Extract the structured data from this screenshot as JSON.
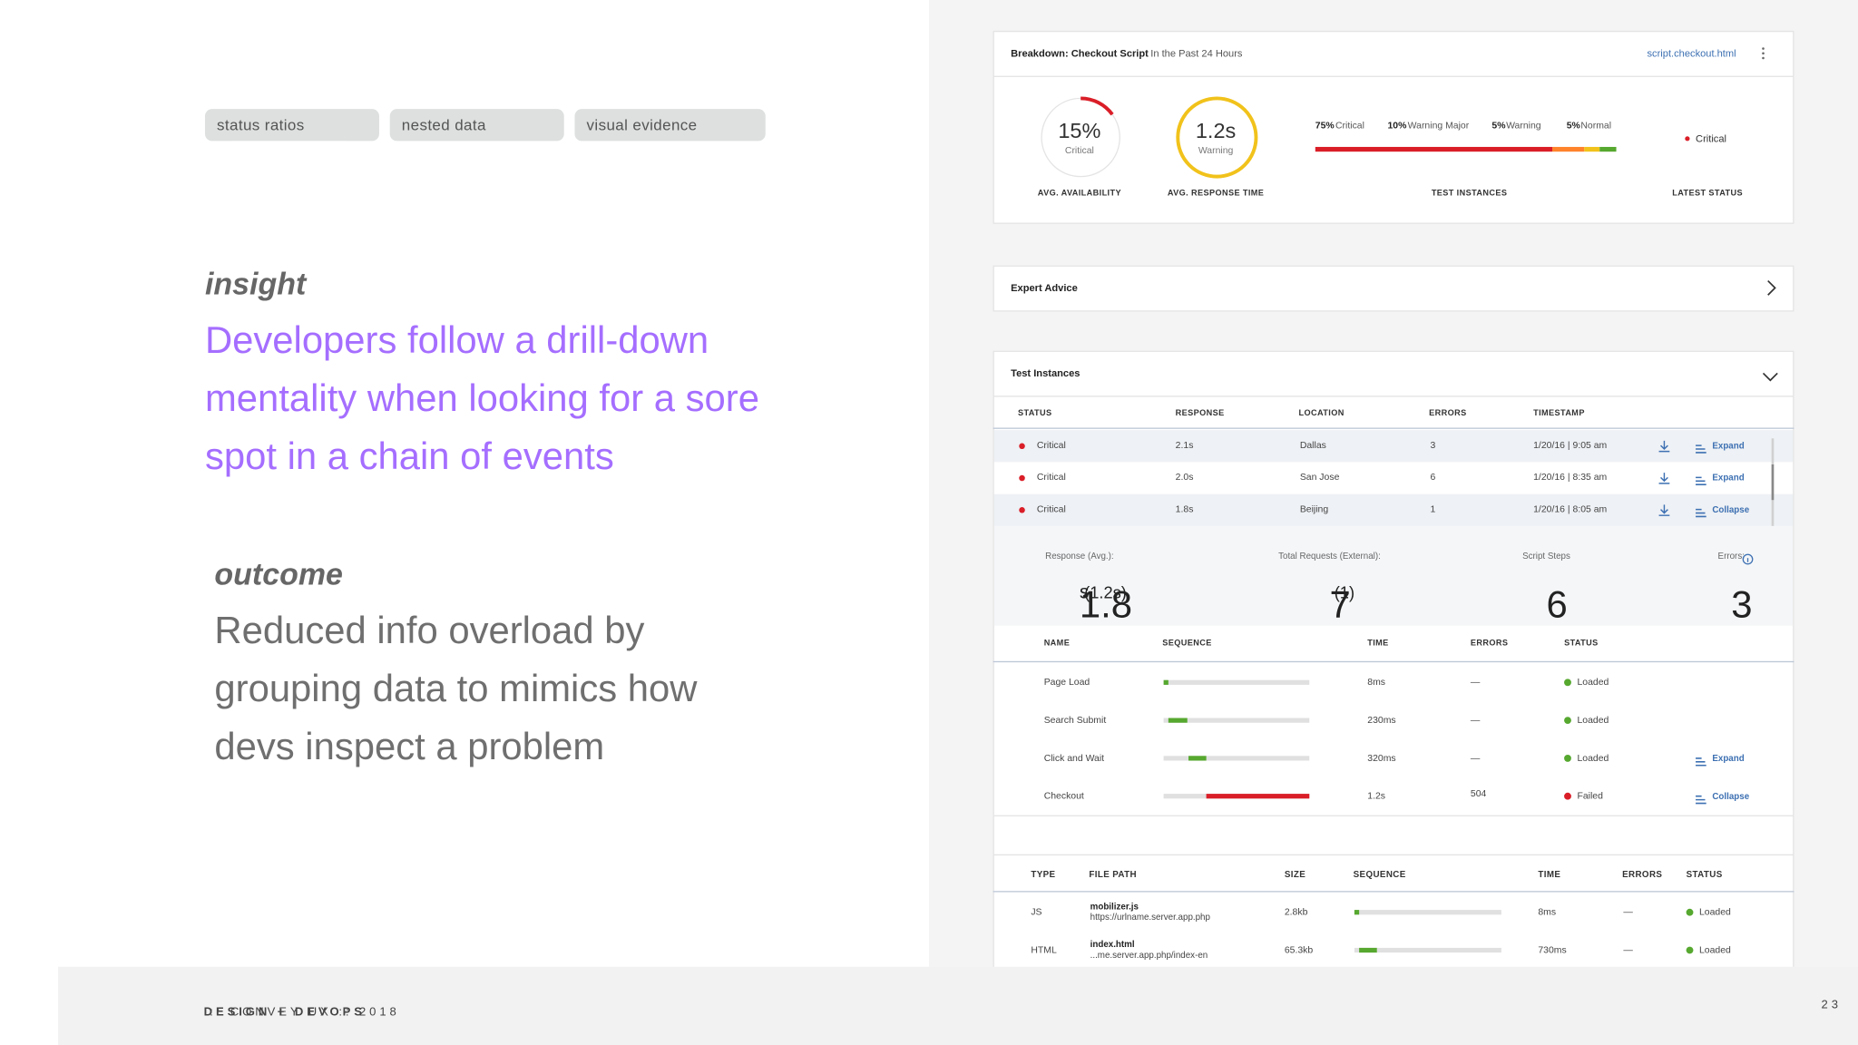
{
  "tags": [
    "status ratios",
    "nested data",
    "visual evidence"
  ],
  "insight": {
    "label": "insight",
    "lines": [
      "Developers follow a drill-down",
      "mentality when looking for a sore",
      "spot in a chain of events"
    ]
  },
  "outcome": {
    "label": "outcome",
    "lines": [
      "Reduced info overload by",
      "grouping data to mimics how",
      "devs inspect a problem"
    ]
  },
  "footer": {
    "brand": "DESIGN + DEVOPS",
    "rest": ":: CONVEY UX :: 2018",
    "page": "23"
  },
  "breakdown": {
    "title": "Breakdown: Checkout Script",
    "period": "In the Past 24 Hours",
    "link": "script.checkout.html",
    "availability": {
      "value": "15%",
      "status": "Critical",
      "label": "AVG. AVAILABILITY",
      "ratio": 15
    },
    "response": {
      "value": "1.2s",
      "status": "Warning",
      "label": "AVG. RESPONSE TIME"
    },
    "instances": {
      "label": "TEST INSTANCES",
      "segments": [
        {
          "pct": "75%",
          "name": "Critical",
          "share": 75,
          "color": "#da1e28"
        },
        {
          "pct": "10%",
          "name": "Warning Major",
          "share": 10,
          "color": "#ff832b"
        },
        {
          "pct": "5%",
          "name": "Warning",
          "share": 5,
          "color": "#f1c21b"
        },
        {
          "pct": "5%",
          "name": "Normal",
          "share": 5,
          "color": "#56a82f"
        }
      ]
    },
    "latest": {
      "label": "LATEST STATUS",
      "status": "Critical"
    }
  },
  "expert": {
    "title": "Expert Advice"
  },
  "instances": {
    "title": "Test Instances",
    "columns": [
      "STATUS",
      "RESPONSE",
      "LOCATION",
      "ERRORS",
      "TIMESTAMP"
    ],
    "rows": [
      {
        "status": "Critical",
        "response": "2.1s",
        "location": "Dallas",
        "errors": "3",
        "timestamp": "1/20/16 | 9:05 am",
        "action": "Expand"
      },
      {
        "status": "Critical",
        "response": "2.0s",
        "location": "San Jose",
        "errors": "6",
        "timestamp": "1/20/16 | 8:35 am",
        "action": "Expand"
      },
      {
        "status": "Critical",
        "response": "1.8s",
        "location": "Beijing",
        "errors": "1",
        "timestamp": "1/20/16 | 8:05 am",
        "action": "Collapse"
      }
    ]
  },
  "summary": [
    {
      "label": "Response (Avg.):",
      "value": "1.8",
      "unit": "s",
      "extra": "(1.2s)"
    },
    {
      "label": "Total Requests (External):",
      "value": "7",
      "extra": "(1)"
    },
    {
      "label": "Script Steps",
      "value": "6"
    },
    {
      "label": "Errors:",
      "value": "3"
    }
  ],
  "steps": {
    "columns": [
      "NAME",
      "SEQUENCE",
      "TIME",
      "ERRORS",
      "STATUS"
    ],
    "rows": [
      {
        "name": "Page Load",
        "time": "8ms",
        "errors": "—",
        "status": "Loaded"
      },
      {
        "name": "Search Submit",
        "time": "230ms",
        "errors": "—",
        "status": "Loaded"
      },
      {
        "name": "Click and Wait",
        "time": "320ms",
        "errors": "—",
        "status": "Loaded",
        "action": "Expand"
      },
      {
        "name": "Checkout",
        "time": "1.2s",
        "errors": "504",
        "status": "Failed",
        "action": "Collapse"
      }
    ]
  },
  "files": {
    "columns": [
      "TYPE",
      "FILE PATH",
      "SIZE",
      "SEQUENCE",
      "TIME",
      "ERRORS",
      "STATUS"
    ],
    "rows": [
      {
        "type": "JS",
        "file": "mobilizer.js",
        "path": "https://urlname.server.app.php",
        "size": "2.8kb",
        "time": "8ms",
        "errors": "—",
        "status": "Loaded"
      },
      {
        "type": "HTML",
        "file": "index.html",
        "path": "...me.server.app.php/index-en",
        "size": "65.3kb",
        "time": "730ms",
        "errors": "—",
        "status": "Loaded"
      }
    ]
  }
}
